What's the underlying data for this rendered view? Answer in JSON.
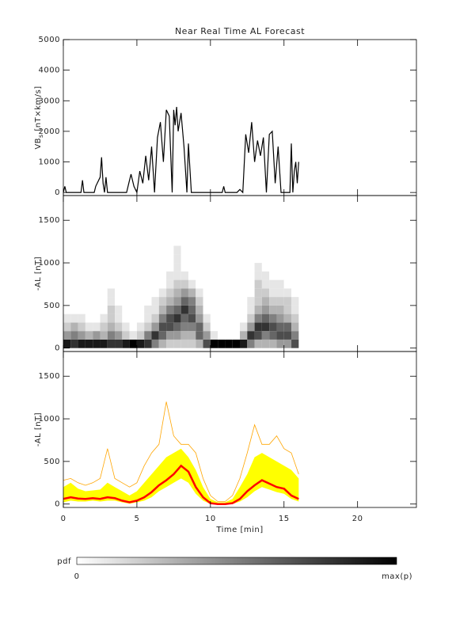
{
  "chart_data": [
    {
      "type": "line",
      "title": "Near Real Time AL Forecast",
      "ylabel": {
        "main": "VB",
        "sub": "s",
        "rest": " [nT×km/s]"
      },
      "xlim": [
        0,
        24
      ],
      "xticks": [
        0,
        5,
        10,
        15,
        20
      ],
      "ylim": [
        -100,
        5000
      ],
      "yticks": [
        0,
        1000,
        2000,
        3000,
        4000,
        5000
      ],
      "color": "#000000",
      "x": [
        0,
        0.1,
        0.2,
        1.2,
        1.3,
        1.4,
        2.1,
        2.2,
        2.5,
        2.6,
        2.7,
        2.8,
        2.9,
        3.0,
        4.3,
        4.5,
        4.6,
        4.8,
        5.0,
        5.2,
        5.4,
        5.6,
        5.8,
        6.0,
        6.2,
        6.4,
        6.6,
        6.8,
        7.0,
        7.2,
        7.4,
        7.5,
        7.6,
        7.7,
        7.8,
        8.0,
        8.2,
        8.4,
        8.5,
        8.7,
        10.8,
        10.9,
        11.0,
        11.8,
        12.0,
        12.2,
        12.4,
        12.6,
        12.8,
        13.0,
        13.2,
        13.4,
        13.6,
        13.8,
        14.0,
        14.2,
        14.4,
        14.6,
        14.8,
        15.4,
        15.5,
        15.6,
        15.7,
        15.8,
        15.9,
        16.0
      ],
      "values": [
        0,
        200,
        0,
        0,
        400,
        0,
        0,
        200,
        500,
        1150,
        300,
        0,
        500,
        0,
        0,
        400,
        600,
        200,
        0,
        700,
        300,
        1200,
        400,
        1500,
        0,
        1800,
        2300,
        1000,
        2700,
        2500,
        0,
        2700,
        2200,
        2800,
        2000,
        2600,
        1500,
        0,
        1600,
        0,
        0,
        200,
        0,
        0,
        100,
        0,
        1900,
        1300,
        2300,
        1000,
        1700,
        1200,
        1800,
        0,
        1900,
        2000,
        300,
        1500,
        0,
        0,
        1600,
        0,
        700,
        1000,
        300,
        1000
      ]
    },
    {
      "type": "heatmap",
      "ylabel": "-AL [nT]",
      "xlim": [
        0,
        24
      ],
      "xticks": [
        0,
        5,
        10,
        15,
        20
      ],
      "ylim": [
        -40,
        1790
      ],
      "yticks": [
        0,
        500,
        1000,
        1500
      ],
      "colormap": [
        "#ffffff",
        "#000000"
      ],
      "x_edges": [
        0,
        0.5,
        1,
        1.5,
        2,
        2.5,
        3,
        3.5,
        4,
        4.5,
        5,
        5.5,
        6,
        6.5,
        7,
        7.5,
        8,
        8.5,
        9,
        9.5,
        10,
        10.5,
        11,
        11.5,
        12,
        12.5,
        13,
        13.5,
        14,
        14.5,
        15,
        15.5,
        16
      ],
      "y_edges": [
        0,
        100,
        200,
        300,
        400,
        500,
        600,
        700,
        800,
        900,
        1000,
        1100,
        1200
      ],
      "z": [
        [
          0.9,
          0.8,
          0.9,
          0.9,
          0.9,
          0.9,
          0.8,
          0.8,
          0.9,
          1,
          0.9,
          0.8,
          0.5,
          0.3,
          0.2,
          0.2,
          0.2,
          0.2,
          0.3,
          0.7,
          1,
          1,
          1,
          1,
          0.9,
          0.5,
          0.3,
          0.3,
          0.3,
          0.4,
          0.4,
          0.7
        ],
        [
          0.4,
          0.5,
          0.4,
          0.3,
          0.4,
          0.3,
          0.5,
          0.4,
          0.2,
          0.1,
          0.2,
          0.5,
          0.8,
          0.6,
          0.4,
          0.4,
          0.3,
          0.3,
          0.6,
          0.4,
          0.1,
          0,
          0,
          0,
          0.3,
          0.8,
          0.7,
          0.5,
          0.6,
          0.7,
          0.7,
          0.5
        ],
        [
          0.2,
          0.3,
          0.2,
          0.1,
          0.1,
          0.2,
          0.3,
          0.2,
          0.1,
          0,
          0.1,
          0.2,
          0.4,
          0.7,
          0.7,
          0.6,
          0.5,
          0.5,
          0.6,
          0.2,
          0,
          0,
          0,
          0,
          0.1,
          0.4,
          0.8,
          0.8,
          0.7,
          0.6,
          0.6,
          0.3
        ],
        [
          0.1,
          0.1,
          0.1,
          0,
          0,
          0.1,
          0.2,
          0.1,
          0,
          0,
          0,
          0.1,
          0.2,
          0.5,
          0.7,
          0.8,
          0.6,
          0.7,
          0.4,
          0.1,
          0,
          0,
          0,
          0,
          0,
          0.2,
          0.5,
          0.6,
          0.5,
          0.4,
          0.3,
          0.2
        ],
        [
          0,
          0,
          0,
          0,
          0,
          0,
          0.2,
          0.1,
          0,
          0,
          0,
          0.1,
          0.1,
          0.3,
          0.5,
          0.6,
          0.8,
          0.6,
          0.3,
          0,
          0,
          0,
          0,
          0,
          0,
          0.1,
          0.3,
          0.4,
          0.3,
          0.3,
          0.2,
          0.1
        ],
        [
          0,
          0,
          0,
          0,
          0,
          0,
          0.1,
          0,
          0,
          0,
          0,
          0,
          0.1,
          0.2,
          0.3,
          0.4,
          0.6,
          0.5,
          0.2,
          0,
          0,
          0,
          0,
          0,
          0,
          0.1,
          0.2,
          0.3,
          0.2,
          0.2,
          0.2,
          0.1
        ],
        [
          0,
          0,
          0,
          0,
          0,
          0,
          0.1,
          0,
          0,
          0,
          0,
          0,
          0,
          0.1,
          0.2,
          0.3,
          0.4,
          0.3,
          0.1,
          0,
          0,
          0,
          0,
          0,
          0,
          0,
          0.2,
          0.2,
          0.1,
          0.1,
          0.1,
          0
        ],
        [
          0,
          0,
          0,
          0,
          0,
          0,
          0,
          0,
          0,
          0,
          0,
          0,
          0,
          0,
          0.1,
          0.2,
          0.2,
          0.1,
          0,
          0,
          0,
          0,
          0,
          0,
          0,
          0,
          0.2,
          0.1,
          0.1,
          0.1,
          0,
          0
        ],
        [
          0,
          0,
          0,
          0,
          0,
          0,
          0,
          0,
          0,
          0,
          0,
          0,
          0,
          0,
          0.1,
          0.1,
          0.1,
          0,
          0,
          0,
          0,
          0,
          0,
          0,
          0,
          0,
          0.1,
          0.1,
          0,
          0,
          0,
          0
        ],
        [
          0,
          0,
          0,
          0,
          0,
          0,
          0,
          0,
          0,
          0,
          0,
          0,
          0,
          0,
          0,
          0.1,
          0,
          0,
          0,
          0,
          0,
          0,
          0,
          0,
          0,
          0,
          0.1,
          0,
          0,
          0,
          0,
          0
        ],
        [
          0,
          0,
          0,
          0,
          0,
          0,
          0,
          0,
          0,
          0,
          0,
          0,
          0,
          0,
          0,
          0.1,
          0,
          0,
          0,
          0,
          0,
          0,
          0,
          0,
          0,
          0,
          0,
          0,
          0,
          0,
          0,
          0
        ],
        [
          0,
          0,
          0,
          0,
          0,
          0,
          0,
          0,
          0,
          0,
          0,
          0,
          0,
          0,
          0,
          0.1,
          0,
          0,
          0,
          0,
          0,
          0,
          0,
          0,
          0,
          0,
          0,
          0,
          0,
          0,
          0,
          0
        ]
      ],
      "colorbar": {
        "label": "pdf",
        "min_label": "0",
        "max_label": "max(p)"
      }
    },
    {
      "type": "band",
      "ylabel": "-AL [nT]",
      "xlabel": "Time [min]",
      "xlim": [
        0,
        24
      ],
      "xticks": [
        0,
        5,
        10,
        15,
        20
      ],
      "ylim": [
        -40,
        1790
      ],
      "yticks": [
        0,
        500,
        1000,
        1500
      ],
      "x": [
        0,
        0.5,
        1,
        1.5,
        2,
        2.5,
        3,
        3.5,
        4,
        4.5,
        5,
        5.5,
        6,
        6.5,
        7,
        7.5,
        8,
        8.5,
        9,
        9.5,
        10,
        10.5,
        11,
        11.5,
        12,
        12.5,
        13,
        13.5,
        14,
        14.5,
        15,
        15.5,
        16
      ],
      "band": {
        "color": "#ffff00",
        "upper": [
          200,
          250,
          180,
          150,
          160,
          170,
          250,
          200,
          150,
          100,
          150,
          250,
          350,
          450,
          550,
          600,
          650,
          550,
          400,
          200,
          60,
          20,
          20,
          60,
          200,
          350,
          550,
          600,
          550,
          500,
          450,
          400,
          300
        ],
        "lower": [
          20,
          40,
          30,
          30,
          40,
          30,
          40,
          40,
          20,
          5,
          20,
          40,
          80,
          150,
          200,
          250,
          300,
          250,
          120,
          40,
          0,
          0,
          0,
          0,
          30,
          80,
          150,
          200,
          170,
          140,
          120,
          60,
          30
        ]
      },
      "series": [
        {
          "color": "#ffa500",
          "width": 0.8,
          "values": [
            280,
            300,
            250,
            220,
            250,
            300,
            650,
            300,
            250,
            200,
            250,
            450,
            600,
            700,
            1200,
            800,
            700,
            700,
            600,
            300,
            100,
            30,
            30,
            100,
            300,
            600,
            930,
            700,
            700,
            800,
            650,
            600,
            350
          ]
        },
        {
          "color": "#ff0000",
          "width": 2.5,
          "values": [
            60,
            80,
            65,
            60,
            70,
            60,
            80,
            70,
            40,
            20,
            40,
            80,
            140,
            220,
            280,
            350,
            450,
            380,
            200,
            80,
            10,
            0,
            0,
            10,
            60,
            150,
            220,
            280,
            240,
            200,
            180,
            100,
            60
          ]
        }
      ]
    }
  ]
}
